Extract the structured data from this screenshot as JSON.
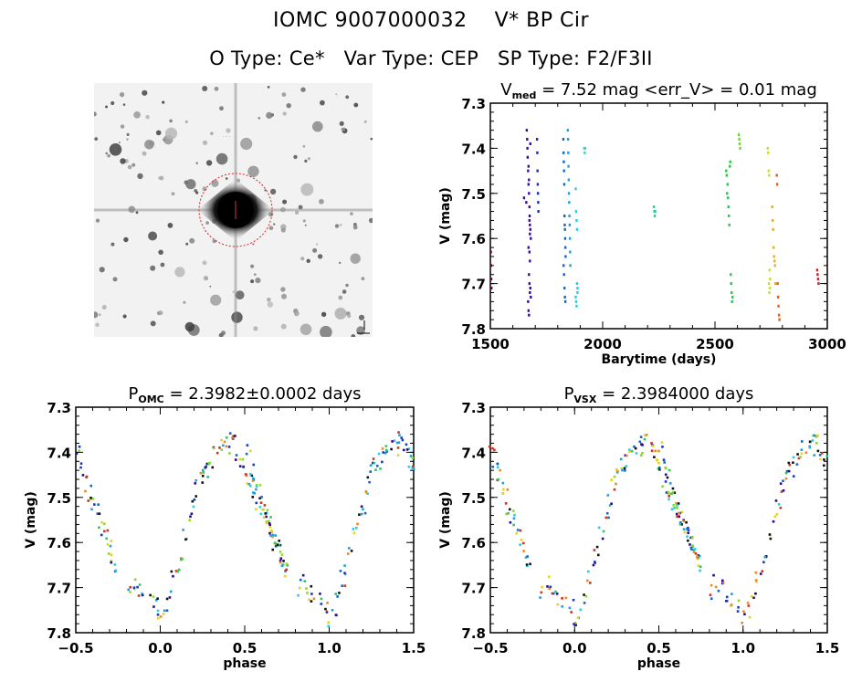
{
  "header": {
    "line1": "IOMC 9007000032    V* BP Cir",
    "line2": "O Type: Ce*   Var Type: CEP   SP Type: F2/F3II"
  },
  "image_panel": {
    "description": "sky cutout with target circled",
    "target_marker_color": "#dd2222"
  },
  "chart_data": [
    {
      "type": "scatter",
      "title_main": "V",
      "title_sub": "med",
      "title_rest": " = 7.52 mag <err_V> = 0.01 mag",
      "xlabel": "Barytime (days)",
      "ylabel": "V (mag)",
      "xlim": [
        1500,
        3000
      ],
      "ylim": [
        7.8,
        7.3
      ],
      "xticks": [
        "1500",
        "2000",
        "2500",
        "3000"
      ],
      "xtick_values": [
        1500,
        2000,
        2500,
        3000
      ],
      "yticks": [
        "7.3",
        "7.4",
        "7.5",
        "7.6",
        "7.7",
        "7.8"
      ],
      "ytick_values": [
        7.3,
        7.4,
        7.5,
        7.6,
        7.7,
        7.8
      ],
      "series": [
        {
          "name": "epoch-1500",
          "color": "#660033",
          "x": [
            1502,
            1503,
            1504,
            1505
          ],
          "y": [
            7.63,
            7.66,
            7.69,
            7.71
          ]
        },
        {
          "name": "epoch-1660",
          "color": "#3b0a9e",
          "x": [
            1650,
            1660,
            1662,
            1664,
            1665,
            1666,
            1668,
            1670,
            1672,
            1674,
            1675,
            1676,
            1678,
            1680,
            1670,
            1672,
            1674,
            1676,
            1668,
            1670,
            1672,
            1674,
            1676,
            1678,
            1670,
            1672,
            1674,
            1676,
            1678,
            1680
          ],
          "y": [
            7.51,
            7.52,
            7.36,
            7.38,
            7.4,
            7.42,
            7.45,
            7.48,
            7.5,
            7.53,
            7.55,
            7.57,
            7.58,
            7.6,
            7.62,
            7.68,
            7.7,
            7.72,
            7.74,
            7.76,
            7.77,
            7.63,
            7.65,
            7.39,
            7.44,
            7.47,
            7.56,
            7.59,
            7.71,
            7.73
          ]
        },
        {
          "name": "epoch-1710",
          "color": "#1a2aa8",
          "x": [
            1708,
            1709,
            1710,
            1711,
            1712,
            1713,
            1714
          ],
          "y": [
            7.38,
            7.41,
            7.45,
            7.48,
            7.5,
            7.52,
            7.54
          ]
        },
        {
          "name": "epoch-1830",
          "color": "#1466c8",
          "x": [
            1825,
            1826,
            1827,
            1828,
            1829,
            1830,
            1831,
            1832,
            1833,
            1834,
            1835,
            1826,
            1828,
            1830,
            1832,
            1834
          ],
          "y": [
            7.38,
            7.41,
            7.43,
            7.45,
            7.48,
            7.55,
            7.57,
            7.58,
            7.6,
            7.62,
            7.64,
            7.66,
            7.68,
            7.71,
            7.73,
            7.74
          ]
        },
        {
          "name": "epoch-1850",
          "color": "#1ea0d8",
          "x": [
            1845,
            1846,
            1847,
            1848,
            1849,
            1850,
            1851,
            1852,
            1853,
            1854,
            1855,
            1856
          ],
          "y": [
            7.36,
            7.38,
            7.41,
            7.44,
            7.47,
            7.5,
            7.52,
            7.55,
            7.57,
            7.6,
            7.63,
            7.66
          ]
        },
        {
          "name": "epoch-1880",
          "color": "#22d0e0",
          "x": [
            1880,
            1882,
            1884,
            1886,
            1888,
            1880,
            1882,
            1884,
            1886,
            1888
          ],
          "y": [
            7.49,
            7.54,
            7.56,
            7.58,
            7.72,
            7.73,
            7.74,
            7.75,
            7.7,
            7.71
          ]
        },
        {
          "name": "epoch-1920",
          "color": "#22e0c8",
          "x": [
            1918,
            1920,
            1922
          ],
          "y": [
            7.4,
            7.41,
            7.4
          ]
        },
        {
          "name": "epoch-2230",
          "color": "#22d0a0",
          "x": [
            2228,
            2230,
            2232,
            2234
          ],
          "y": [
            7.53,
            7.54,
            7.55,
            7.54
          ]
        },
        {
          "name": "epoch-2560",
          "color": "#22cc44",
          "x": [
            2550,
            2552,
            2554,
            2556,
            2558,
            2560,
            2562,
            2564,
            2566,
            2568,
            2570,
            2572,
            2574,
            2576,
            2578
          ],
          "y": [
            7.45,
            7.46,
            7.5,
            7.48,
            7.51,
            7.53,
            7.55,
            7.57,
            7.44,
            7.43,
            7.68,
            7.7,
            7.72,
            7.74,
            7.73
          ]
        },
        {
          "name": "epoch-2610",
          "color": "#66dd22",
          "x": [
            2606,
            2608,
            2610,
            2612
          ],
          "y": [
            7.37,
            7.38,
            7.39,
            7.4
          ]
        },
        {
          "name": "epoch-2740",
          "color": "#c8e022",
          "x": [
            2735,
            2737,
            2739,
            2741,
            2743,
            2745,
            2740,
            2742,
            2744
          ],
          "y": [
            7.4,
            7.41,
            7.45,
            7.46,
            7.67,
            7.69,
            7.7,
            7.72,
            7.71
          ]
        },
        {
          "name": "epoch-2760",
          "color": "#e8b020",
          "x": [
            2755,
            2757,
            2759,
            2761,
            2763,
            2765,
            2767,
            2769
          ],
          "y": [
            7.53,
            7.56,
            7.58,
            7.62,
            7.64,
            7.65,
            7.66,
            7.7
          ]
        },
        {
          "name": "epoch-2780",
          "color": "#d86020",
          "x": [
            2775,
            2777,
            2779,
            2781,
            2783,
            2785,
            2787
          ],
          "y": [
            7.46,
            7.48,
            7.7,
            7.73,
            7.75,
            7.77,
            7.78
          ]
        },
        {
          "name": "epoch-2960",
          "color": "#cc2222",
          "x": [
            2955,
            2957,
            2959,
            2961
          ],
          "y": [
            7.67,
            7.68,
            7.69,
            7.7
          ]
        }
      ]
    },
    {
      "type": "scatter",
      "title_main": "P",
      "title_sub": "OMC",
      "title_rest": " = 2.3982±0.0002 days",
      "xlabel": "phase",
      "ylabel": "V (mag)",
      "xlim": [
        -0.5,
        1.5
      ],
      "ylim": [
        7.8,
        7.3
      ],
      "xticks": [
        "−0.5",
        "0.0",
        "0.5",
        "1.0",
        "1.5"
      ],
      "xtick_values": [
        -0.5,
        0.0,
        0.5,
        1.0,
        1.5
      ],
      "yticks": [
        "7.3",
        "7.4",
        "7.5",
        "7.6",
        "7.7",
        "7.8"
      ],
      "ytick_values": [
        7.3,
        7.4,
        7.5,
        7.6,
        7.7,
        7.8
      ],
      "curve_model": {
        "mean": 7.55,
        "amplitude": 0.36,
        "phase_of_max": 0.42,
        "phase_of_min": 0.0,
        "scatter": 0.03
      },
      "color_palette": [
        "#2a0a8e",
        "#1a3ab8",
        "#1466c8",
        "#1ea0d8",
        "#22d0e0",
        "#22cc66",
        "#88dd22",
        "#e8d020",
        "#e88a20",
        "#cc3322",
        "#111111"
      ],
      "phase_points": [
        [
          -0.48,
          7.4
        ],
        [
          -0.46,
          7.44
        ],
        [
          -0.44,
          7.47
        ],
        [
          -0.42,
          7.49
        ],
        [
          -0.4,
          7.51
        ],
        [
          -0.38,
          7.53
        ],
        [
          -0.36,
          7.55
        ],
        [
          -0.34,
          7.57
        ],
        [
          -0.32,
          7.59
        ],
        [
          -0.3,
          7.61
        ],
        [
          -0.28,
          7.63
        ],
        [
          -0.26,
          7.65
        ],
        [
          -0.18,
          7.7
        ],
        [
          -0.15,
          7.69
        ],
        [
          -0.12,
          7.71
        ],
        [
          -0.1,
          7.72
        ],
        [
          -0.05,
          7.73
        ],
        [
          -0.02,
          7.74
        ],
        [
          0.0,
          7.77
        ],
        [
          0.03,
          7.75
        ],
        [
          0.05,
          7.72
        ],
        [
          0.08,
          7.68
        ],
        [
          0.1,
          7.66
        ],
        [
          0.12,
          7.63
        ],
        [
          0.15,
          7.58
        ],
        [
          0.18,
          7.55
        ],
        [
          0.2,
          7.52
        ],
        [
          0.22,
          7.48
        ],
        [
          0.24,
          7.45
        ],
        [
          0.26,
          7.43
        ],
        [
          0.28,
          7.44
        ],
        [
          0.3,
          7.42
        ],
        [
          0.33,
          7.4
        ],
        [
          0.35,
          7.39
        ],
        [
          0.38,
          7.38
        ],
        [
          0.4,
          7.39
        ],
        [
          0.42,
          7.37
        ],
        [
          0.44,
          7.38
        ],
        [
          0.46,
          7.4
        ],
        [
          0.48,
          7.42
        ],
        [
          0.5,
          7.44
        ],
        [
          0.52,
          7.46
        ],
        [
          0.54,
          7.48
        ],
        [
          0.56,
          7.5
        ],
        [
          0.58,
          7.51
        ],
        [
          0.6,
          7.53
        ],
        [
          0.62,
          7.55
        ],
        [
          0.64,
          7.57
        ],
        [
          0.66,
          7.59
        ],
        [
          0.68,
          7.6
        ],
        [
          0.7,
          7.62
        ],
        [
          0.72,
          7.64
        ],
        [
          0.74,
          7.66
        ]
      ]
    },
    {
      "type": "scatter",
      "title_main": "P",
      "title_sub": "VSX",
      "title_rest": " = 2.3984000 days",
      "xlabel": "phase",
      "ylabel": "V (mag)",
      "xlim": [
        -0.5,
        1.5
      ],
      "ylim": [
        7.8,
        7.3
      ],
      "xticks": [
        "−0.5",
        "0.0",
        "0.5",
        "1.0",
        "1.5"
      ],
      "xtick_values": [
        -0.5,
        0.0,
        0.5,
        1.0,
        1.5
      ],
      "yticks": [
        "7.3",
        "7.4",
        "7.5",
        "7.6",
        "7.7",
        "7.8"
      ],
      "ytick_values": [
        7.3,
        7.4,
        7.5,
        7.6,
        7.7,
        7.8
      ],
      "color_palette": [
        "#2a0a8e",
        "#1a3ab8",
        "#1466c8",
        "#1ea0d8",
        "#22d0e0",
        "#22cc66",
        "#88dd22",
        "#e8d020",
        "#e88a20",
        "#cc3322",
        "#111111"
      ],
      "phase_points": [
        [
          -0.49,
          7.38
        ],
        [
          -0.47,
          7.42
        ],
        [
          -0.45,
          7.45
        ],
        [
          -0.43,
          7.48
        ],
        [
          -0.41,
          7.5
        ],
        [
          -0.39,
          7.52
        ],
        [
          -0.37,
          7.54
        ],
        [
          -0.35,
          7.56
        ],
        [
          -0.33,
          7.58
        ],
        [
          -0.31,
          7.6
        ],
        [
          -0.29,
          7.62
        ],
        [
          -0.27,
          7.64
        ],
        [
          -0.19,
          7.71
        ],
        [
          -0.16,
          7.69
        ],
        [
          -0.13,
          7.7
        ],
        [
          -0.1,
          7.72
        ],
        [
          -0.06,
          7.73
        ],
        [
          -0.02,
          7.74
        ],
        [
          0.0,
          7.77
        ],
        [
          0.03,
          7.75
        ],
        [
          0.06,
          7.73
        ],
        [
          0.09,
          7.68
        ],
        [
          0.11,
          7.66
        ],
        [
          0.13,
          7.62
        ],
        [
          0.16,
          7.58
        ],
        [
          0.19,
          7.54
        ],
        [
          0.21,
          7.51
        ],
        [
          0.23,
          7.47
        ],
        [
          0.25,
          7.45
        ],
        [
          0.27,
          7.43
        ],
        [
          0.29,
          7.44
        ],
        [
          0.31,
          7.42
        ],
        [
          0.34,
          7.4
        ],
        [
          0.36,
          7.39
        ],
        [
          0.39,
          7.38
        ],
        [
          0.41,
          7.39
        ],
        [
          0.43,
          7.37
        ],
        [
          0.45,
          7.38
        ],
        [
          0.47,
          7.4
        ],
        [
          0.49,
          7.42
        ],
        [
          0.51,
          7.44
        ],
        [
          0.53,
          7.46
        ],
        [
          0.55,
          7.48
        ],
        [
          0.57,
          7.5
        ],
        [
          0.59,
          7.52
        ],
        [
          0.61,
          7.53
        ],
        [
          0.63,
          7.55
        ],
        [
          0.65,
          7.57
        ],
        [
          0.67,
          7.59
        ],
        [
          0.69,
          7.6
        ],
        [
          0.71,
          7.62
        ],
        [
          0.73,
          7.64
        ],
        [
          0.75,
          7.66
        ]
      ]
    }
  ]
}
